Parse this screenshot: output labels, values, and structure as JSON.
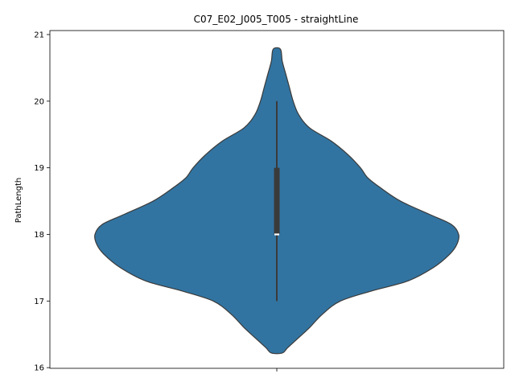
{
  "chart_data": {
    "type": "violin",
    "title": "C07_E02_J005_T005 - straightLine",
    "xlabel": "",
    "ylabel": "PathLength",
    "ylim": [
      15.99,
      21.06
    ],
    "yticks": [
      16,
      17,
      18,
      19,
      20,
      21
    ],
    "ytick_labels": [
      "16",
      "17",
      "18",
      "19",
      "20",
      "21"
    ],
    "grid": false,
    "colors": {
      "body": "#3274a1",
      "edge": "#3a3a3a",
      "box": "#3a3a3a",
      "median": "#ffffff"
    },
    "violin": {
      "range": [
        16.22,
        20.78
      ],
      "density_profile": [
        {
          "y": 16.22,
          "w": 0.03
        },
        {
          "y": 16.3,
          "w": 0.06
        },
        {
          "y": 16.45,
          "w": 0.12
        },
        {
          "y": 16.6,
          "w": 0.18
        },
        {
          "y": 16.8,
          "w": 0.25
        },
        {
          "y": 17.0,
          "w": 0.35
        },
        {
          "y": 17.15,
          "w": 0.52
        },
        {
          "y": 17.3,
          "w": 0.72
        },
        {
          "y": 17.5,
          "w": 0.86
        },
        {
          "y": 17.7,
          "w": 0.95
        },
        {
          "y": 17.85,
          "w": 0.99
        },
        {
          "y": 18.0,
          "w": 1.0
        },
        {
          "y": 18.15,
          "w": 0.96
        },
        {
          "y": 18.3,
          "w": 0.84
        },
        {
          "y": 18.5,
          "w": 0.68
        },
        {
          "y": 18.7,
          "w": 0.57
        },
        {
          "y": 18.85,
          "w": 0.5
        },
        {
          "y": 19.0,
          "w": 0.46
        },
        {
          "y": 19.2,
          "w": 0.39
        },
        {
          "y": 19.4,
          "w": 0.3
        },
        {
          "y": 19.6,
          "w": 0.18
        },
        {
          "y": 19.8,
          "w": 0.12
        },
        {
          "y": 20.0,
          "w": 0.09
        },
        {
          "y": 20.2,
          "w": 0.07
        },
        {
          "y": 20.4,
          "w": 0.05
        },
        {
          "y": 20.6,
          "w": 0.03
        },
        {
          "y": 20.78,
          "w": 0.02
        }
      ]
    },
    "box": {
      "whisker_low": 17,
      "q1": 18,
      "median": 18,
      "q3": 19,
      "whisker_high": 20
    }
  }
}
